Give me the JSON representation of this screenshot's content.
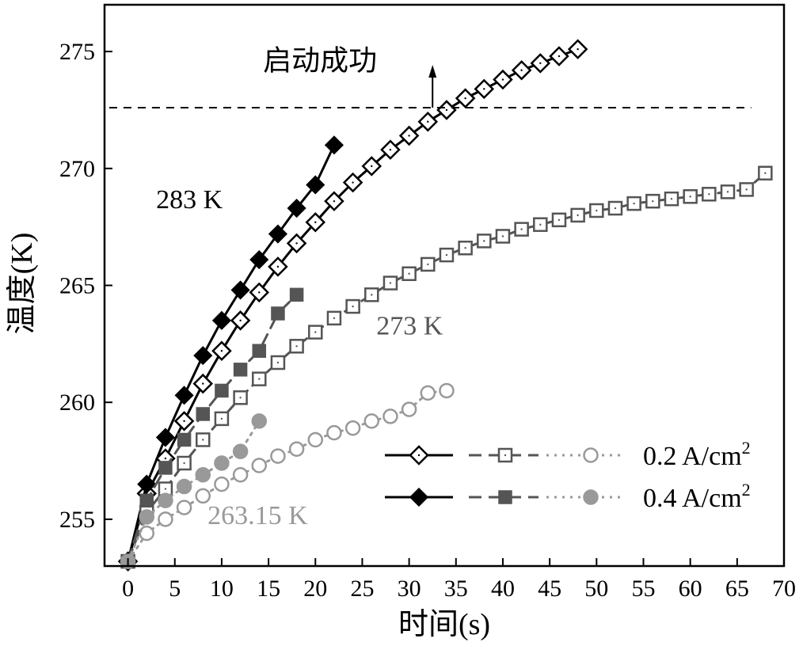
{
  "chart_data": {
    "type": "line",
    "title": "",
    "xlabel": "时间(s)",
    "ylabel": "温度(K)",
    "xlim": [
      -2.5,
      70
    ],
    "ylim": [
      253,
      277
    ],
    "xticks": [
      0,
      5,
      10,
      15,
      20,
      25,
      30,
      35,
      40,
      45,
      50,
      55,
      60,
      65,
      70
    ],
    "yticks": [
      255,
      260,
      265,
      270,
      275
    ],
    "threshold": {
      "y": 272.6,
      "label": "启动成功"
    },
    "annotations": [
      {
        "text": "283 K",
        "x": 3,
        "y": 268.3,
        "color": "#000000"
      },
      {
        "text": "273 K",
        "x": 26.5,
        "y": 262.9,
        "color": "#555555"
      },
      {
        "text": "263.15 K",
        "x": 8.5,
        "y": 254.8,
        "color": "#999999"
      }
    ],
    "legend": {
      "position": "bottom-right",
      "entries": [
        {
          "label": "0.2 A/cm",
          "sup": "2",
          "filled": false
        },
        {
          "label": "0.4 A/cm",
          "sup": "2",
          "filled": true
        }
      ]
    },
    "series": [
      {
        "name": "283 K, 0.2 A/cm2",
        "temperature": "283 K",
        "current_density": "0.2 A/cm2",
        "marker": "diamond",
        "filled": false,
        "color": "#000000",
        "line": "solid",
        "x": [
          0,
          2,
          4,
          6,
          8,
          10,
          12,
          14,
          16,
          18,
          20,
          22,
          24,
          26,
          28,
          30,
          32,
          34,
          36,
          38,
          40,
          42,
          44,
          46,
          48
        ],
        "y": [
          253.2,
          256.1,
          257.6,
          259.2,
          260.8,
          262.2,
          263.5,
          264.7,
          265.8,
          266.8,
          267.7,
          268.6,
          269.4,
          270.1,
          270.8,
          271.4,
          272.0,
          272.5,
          273.0,
          273.4,
          273.8,
          274.2,
          274.5,
          274.8,
          275.1
        ]
      },
      {
        "name": "283 K, 0.4 A/cm2",
        "temperature": "283 K",
        "current_density": "0.4 A/cm2",
        "marker": "diamond",
        "filled": true,
        "color": "#000000",
        "line": "solid",
        "x": [
          0,
          2,
          4,
          6,
          8,
          10,
          12,
          14,
          16,
          18,
          20,
          22
        ],
        "y": [
          253.2,
          256.5,
          258.5,
          260.3,
          262.0,
          263.5,
          264.8,
          266.1,
          267.2,
          268.3,
          269.3,
          271.0
        ]
      },
      {
        "name": "273 K, 0.2 A/cm2",
        "temperature": "273 K",
        "current_density": "0.2 A/cm2",
        "marker": "square",
        "filled": false,
        "color": "#555555",
        "line": "dashed",
        "x": [
          0,
          2,
          4,
          6,
          8,
          10,
          12,
          14,
          16,
          18,
          20,
          22,
          24,
          26,
          28,
          30,
          32,
          34,
          36,
          38,
          40,
          42,
          44,
          46,
          48,
          50,
          52,
          54,
          56,
          58,
          60,
          62,
          64,
          66,
          68
        ],
        "y": [
          253.2,
          255.3,
          256.3,
          257.4,
          258.4,
          259.3,
          260.2,
          261.0,
          261.7,
          262.4,
          263.0,
          263.6,
          264.1,
          264.6,
          265.1,
          265.5,
          265.9,
          266.3,
          266.6,
          266.9,
          267.1,
          267.4,
          267.6,
          267.8,
          268.0,
          268.2,
          268.3,
          268.5,
          268.6,
          268.7,
          268.8,
          268.9,
          269.0,
          269.1,
          269.8
        ]
      },
      {
        "name": "273 K, 0.4 A/cm2",
        "temperature": "273 K",
        "current_density": "0.4 A/cm2",
        "marker": "square",
        "filled": true,
        "color": "#555555",
        "line": "dashed",
        "x": [
          0,
          2,
          4,
          6,
          8,
          10,
          12,
          14,
          16,
          18
        ],
        "y": [
          253.2,
          255.8,
          257.2,
          258.4,
          259.5,
          260.5,
          261.4,
          262.2,
          263.8,
          264.6
        ]
      },
      {
        "name": "263.15 K, 0.2 A/cm2",
        "temperature": "263.15 K",
        "current_density": "0.2 A/cm2",
        "marker": "circle",
        "filled": false,
        "color": "#999999",
        "line": "dotted",
        "x": [
          0,
          2,
          4,
          6,
          8,
          10,
          12,
          14,
          16,
          18,
          20,
          22,
          24,
          26,
          28,
          30,
          32,
          34
        ],
        "y": [
          253.2,
          254.4,
          255.0,
          255.5,
          256.0,
          256.5,
          256.9,
          257.3,
          257.7,
          258.0,
          258.4,
          258.7,
          258.9,
          259.2,
          259.4,
          259.7,
          260.4,
          260.5
        ]
      },
      {
        "name": "263.15 K, 0.4 A/cm2",
        "temperature": "263.15 K",
        "current_density": "0.4 A/cm2",
        "marker": "circle",
        "filled": true,
        "color": "#999999",
        "line": "dotted",
        "x": [
          0,
          2,
          4,
          6,
          8,
          10,
          12,
          14
        ],
        "y": [
          253.2,
          255.1,
          255.8,
          256.4,
          256.9,
          257.4,
          257.9,
          259.2
        ]
      }
    ]
  }
}
